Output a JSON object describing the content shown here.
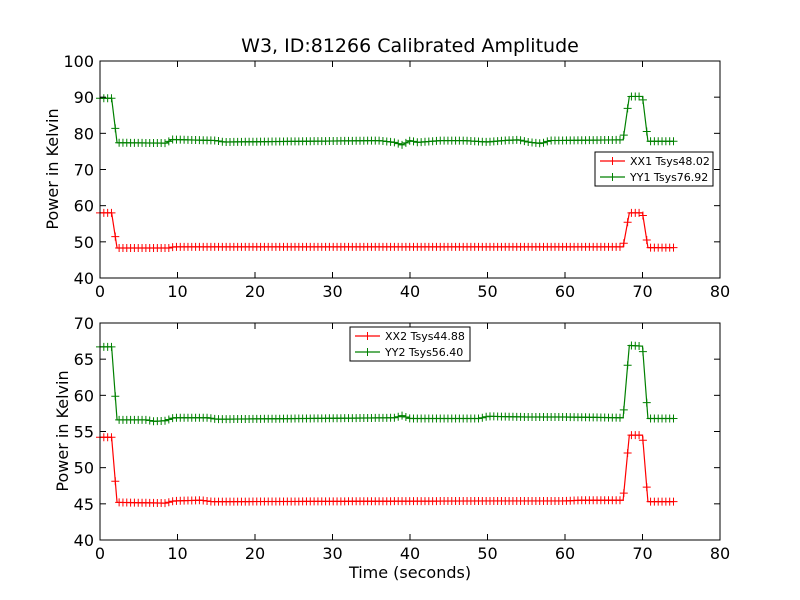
{
  "chart_data": [
    {
      "type": "line",
      "title": "W3, ID:81266 Calibrated Amplitude",
      "xlabel": "",
      "ylabel": "Power in Kelvin",
      "xlim": [
        0,
        80
      ],
      "ylim": [
        40,
        100
      ],
      "xticks": [
        "0",
        "10",
        "20",
        "30",
        "40",
        "50",
        "60",
        "70",
        "80"
      ],
      "yticks": [
        "40",
        "50",
        "60",
        "70",
        "80",
        "90",
        "100"
      ],
      "legend_position": "center-right",
      "grid": false,
      "series": [
        {
          "name": "XX1 Tsys48.02",
          "color": "#ff0000",
          "segments": [
            [
              0,
              58
            ],
            [
              1.5,
              58
            ],
            [
              2.2,
              48.3
            ],
            [
              9,
              48.3
            ],
            [
              9.5,
              48.6
            ],
            [
              67.5,
              48.6
            ],
            [
              68.3,
              58
            ],
            [
              70,
              58
            ],
            [
              70.7,
              48.4
            ],
            [
              74,
              48.4
            ]
          ]
        },
        {
          "name": "YY1 Tsys76.92",
          "color": "#008000",
          "segments": [
            [
              0,
              89.7
            ],
            [
              1.5,
              89.7
            ],
            [
              2.2,
              77.4
            ],
            [
              8.5,
              77.3
            ],
            [
              9.3,
              78.3
            ],
            [
              15,
              78
            ],
            [
              16,
              77.6
            ],
            [
              36,
              78
            ],
            [
              38,
              77.5
            ],
            [
              39,
              76.8
            ],
            [
              40,
              78
            ],
            [
              41,
              77.5
            ],
            [
              44,
              78
            ],
            [
              47,
              78
            ],
            [
              50,
              77.6
            ],
            [
              52,
              78
            ],
            [
              54,
              78.2
            ],
            [
              55.5,
              77.5
            ],
            [
              57,
              77.2
            ],
            [
              58,
              78
            ],
            [
              67.5,
              78.2
            ],
            [
              68.3,
              90.2
            ],
            [
              70,
              90.2
            ],
            [
              70.7,
              77.8
            ],
            [
              74,
              77.8
            ]
          ]
        }
      ]
    },
    {
      "type": "line",
      "title": "",
      "xlabel": "Time (seconds)",
      "ylabel": "Power in Kelvin",
      "xlim": [
        0,
        80
      ],
      "ylim": [
        40,
        70
      ],
      "xticks": [
        "0",
        "10",
        "20",
        "30",
        "40",
        "50",
        "60",
        "70",
        "80"
      ],
      "yticks": [
        "40",
        "45",
        "50",
        "55",
        "60",
        "65",
        "70"
      ],
      "legend_position": "top-center",
      "grid": false,
      "series": [
        {
          "name": "XX2 Tsys44.88",
          "color": "#ff0000",
          "segments": [
            [
              0,
              54.2
            ],
            [
              1.5,
              54.2
            ],
            [
              2.2,
              45.2
            ],
            [
              8.5,
              45.1
            ],
            [
              9.5,
              45.4
            ],
            [
              13,
              45.5
            ],
            [
              14.5,
              45.3
            ],
            [
              50,
              45.4
            ],
            [
              60,
              45.4
            ],
            [
              62,
              45.5
            ],
            [
              67.5,
              45.5
            ],
            [
              68.3,
              54.5
            ],
            [
              70,
              54.5
            ],
            [
              70.7,
              45.3
            ],
            [
              74,
              45.3
            ]
          ]
        },
        {
          "name": "YY2 Tsys56.40",
          "color": "#008000",
          "segments": [
            [
              0,
              66.7
            ],
            [
              1.5,
              66.7
            ],
            [
              2.2,
              56.6
            ],
            [
              6,
              56.6
            ],
            [
              7,
              56.4
            ],
            [
              8.5,
              56.5
            ],
            [
              9.5,
              56.9
            ],
            [
              14,
              56.9
            ],
            [
              15,
              56.7
            ],
            [
              38,
              56.9
            ],
            [
              39,
              57.2
            ],
            [
              40,
              56.8
            ],
            [
              49,
              56.8
            ],
            [
              50,
              57.1
            ],
            [
              55,
              57
            ],
            [
              60,
              57
            ],
            [
              67.5,
              56.9
            ],
            [
              68.3,
              66.9
            ],
            [
              70,
              66.8
            ],
            [
              70.7,
              56.8
            ],
            [
              74,
              56.8
            ]
          ]
        }
      ]
    }
  ]
}
